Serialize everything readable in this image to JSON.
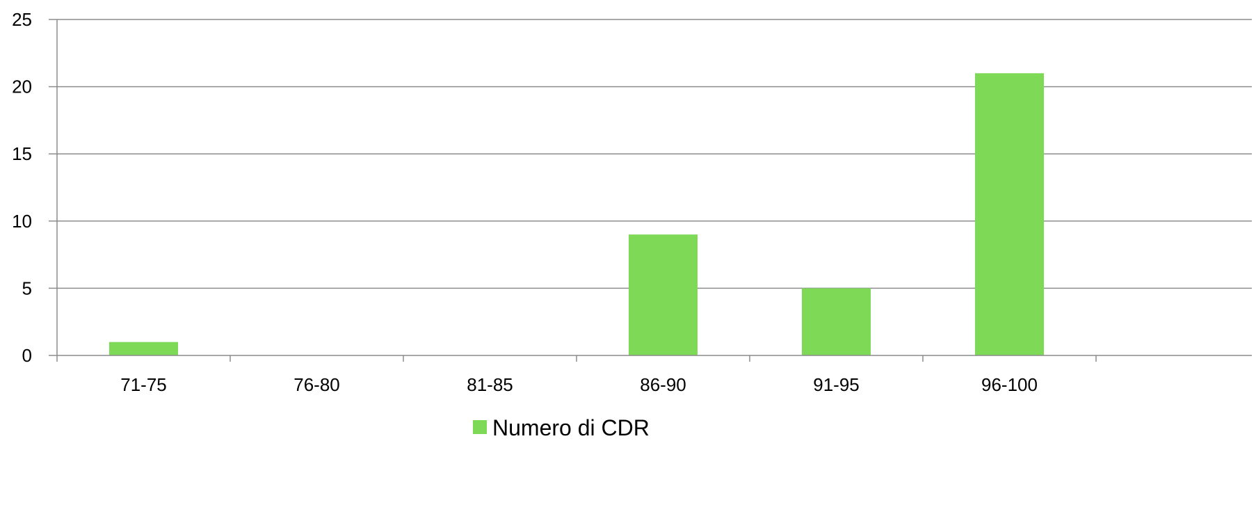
{
  "chart_data": {
    "type": "bar",
    "categories": [
      "71-75",
      "76-80",
      "81-85",
      "86-90",
      "91-95",
      "96-100"
    ],
    "series": [
      {
        "name": "Numero di CDR",
        "values": [
          1,
          0,
          0,
          9,
          5,
          21
        ],
        "color": "#7ED957"
      }
    ],
    "ylim": [
      0,
      25
    ],
    "yticks": [
      0,
      5,
      10,
      15,
      20,
      25
    ],
    "grid": true,
    "legend": "bottom-center",
    "colors": {
      "gridline": "#8C8C8C",
      "axis": "#8C8C8C",
      "bar": "#7ED957"
    }
  }
}
